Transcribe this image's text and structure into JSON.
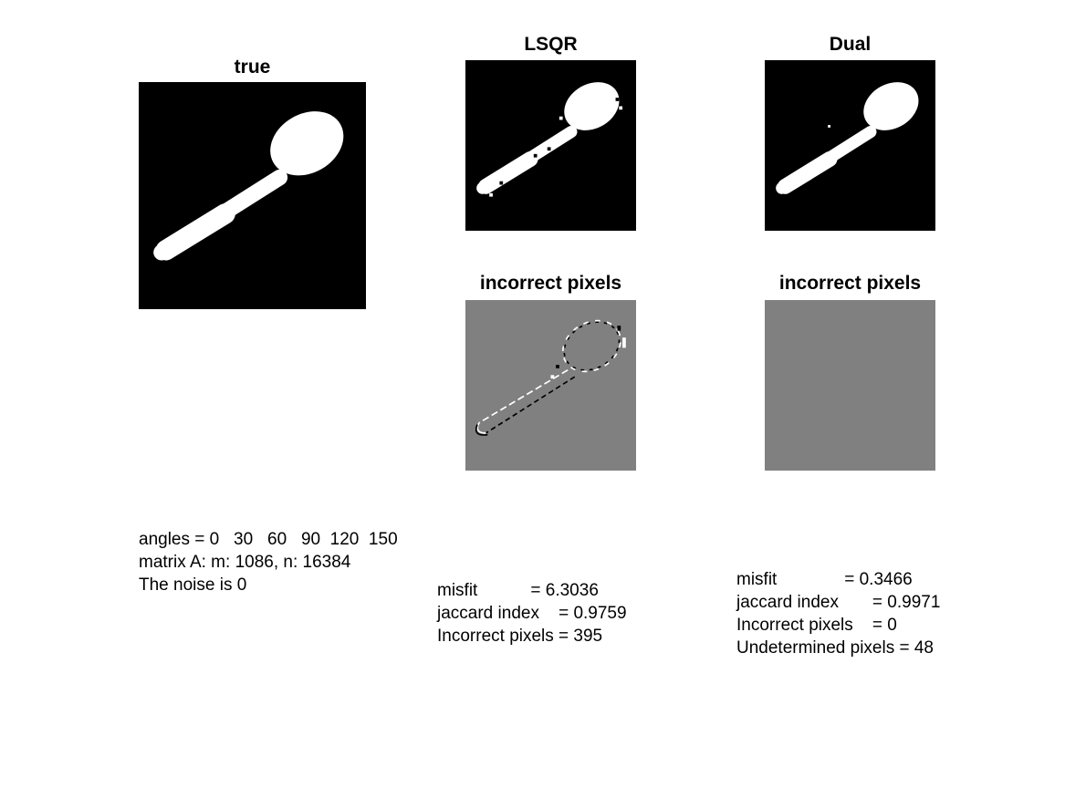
{
  "titles": {
    "true": "true",
    "lsqr": "LSQR",
    "dual": "Dual",
    "lsqr_diff": "incorrect pixels",
    "dual_diff": "incorrect pixels"
  },
  "info": {
    "angles": "angles = 0   30   60   90  120  150",
    "matrix": "matrix A: m: 1086, n: 16384",
    "noise": "The noise is 0"
  },
  "lsqr_stats": {
    "misfit": "misfit           = 6.3036",
    "jaccard": "jaccard index    = 0.9759",
    "incorrect": "Incorrect pixels = 395"
  },
  "dual_stats": {
    "misfit": "misfit              = 0.3466",
    "jaccard": "jaccard index       = 0.9971",
    "incorrect": "Incorrect pixels    = 0",
    "undetermined": "Undetermined pixels = 48"
  },
  "colors": {
    "background": "#000000",
    "object": "#ffffff",
    "neutral": "#808080"
  }
}
